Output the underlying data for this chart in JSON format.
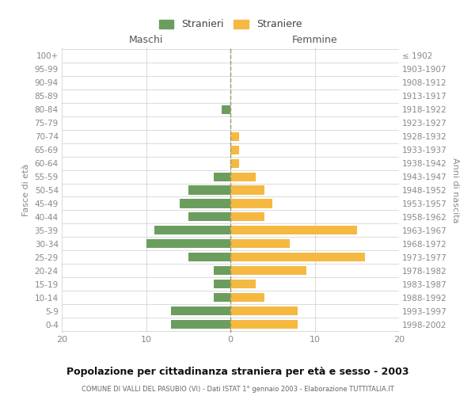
{
  "age_groups_bottom_to_top": [
    "0-4",
    "5-9",
    "10-14",
    "15-19",
    "20-24",
    "25-29",
    "30-34",
    "35-39",
    "40-44",
    "45-49",
    "50-54",
    "55-59",
    "60-64",
    "65-69",
    "70-74",
    "75-79",
    "80-84",
    "85-89",
    "90-94",
    "95-99",
    "100+"
  ],
  "birth_years_bottom_to_top": [
    "1998-2002",
    "1993-1997",
    "1988-1992",
    "1983-1987",
    "1978-1982",
    "1973-1977",
    "1968-1972",
    "1963-1967",
    "1958-1962",
    "1953-1957",
    "1948-1952",
    "1943-1947",
    "1938-1942",
    "1933-1937",
    "1928-1932",
    "1923-1927",
    "1918-1922",
    "1913-1917",
    "1908-1912",
    "1903-1907",
    "≤ 1902"
  ],
  "maschi_bottom_to_top": [
    7,
    7,
    2,
    2,
    2,
    5,
    10,
    9,
    5,
    6,
    5,
    2,
    0,
    0,
    0,
    0,
    1,
    0,
    0,
    0,
    0
  ],
  "femmine_bottom_to_top": [
    8,
    8,
    4,
    3,
    9,
    16,
    7,
    15,
    4,
    5,
    4,
    3,
    1,
    1,
    1,
    0,
    0,
    0,
    0,
    0,
    0
  ],
  "maschi_color": "#6b9e5e",
  "femmine_color": "#f5b942",
  "title": "Popolazione per cittadinanza straniera per età e sesso - 2003",
  "subtitle": "COMUNE DI VALLI DEL PASUBIO (VI) - Dati ISTAT 1° gennaio 2003 - Elaborazione TUTTITALIA.IT",
  "ylabel_left": "Fasce di età",
  "ylabel_right": "Anni di nascita",
  "legend_maschi": "Stranieri",
  "legend_femmine": "Straniere",
  "xlim": [
    -20,
    20
  ],
  "background_color": "#ffffff",
  "grid_color": "#cccccc"
}
